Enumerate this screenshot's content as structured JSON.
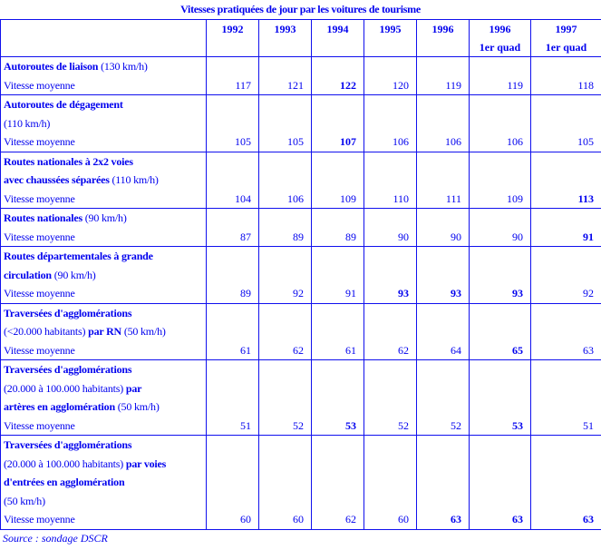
{
  "title": "Vitesses pratiquées de jour par les voitures de tourisme",
  "columns": [
    {
      "l1": "1992",
      "l2": ""
    },
    {
      "l1": "1993",
      "l2": ""
    },
    {
      "l1": "1994",
      "l2": ""
    },
    {
      "l1": "1995",
      "l2": ""
    },
    {
      "l1": "1996",
      "l2": ""
    },
    {
      "l1": "1996",
      "l2": "1er quad"
    },
    {
      "l1": "1997",
      "l2": "1er quad"
    }
  ],
  "text_color": "#0000ee",
  "rows": [
    {
      "lines": [
        [
          {
            "t": "Autoroutes de liaison ",
            "b": true
          },
          {
            "t": "(130 km/h)",
            "b": false
          }
        ]
      ],
      "measure": "Vitesse moyenne",
      "values": [
        117,
        121,
        122,
        120,
        119,
        119,
        118
      ],
      "bold": [
        false,
        false,
        true,
        false,
        false,
        false,
        false
      ]
    },
    {
      "lines": [
        [
          {
            "t": "Autoroutes de dégagement",
            "b": true
          }
        ],
        [
          {
            "t": "(110 km/h)",
            "b": false
          }
        ]
      ],
      "measure": "Vitesse moyenne",
      "values": [
        105,
        105,
        107,
        106,
        106,
        106,
        105
      ],
      "bold": [
        false,
        false,
        true,
        false,
        false,
        false,
        false
      ]
    },
    {
      "lines": [
        [
          {
            "t": "Routes nationales à 2x2 voies",
            "b": true
          }
        ],
        [
          {
            "t": "avec chaussées séparées ",
            "b": true
          },
          {
            "t": "(110 km/h)",
            "b": false
          }
        ]
      ],
      "measure": "Vitesse moyenne",
      "values": [
        104,
        106,
        109,
        110,
        111,
        109,
        113
      ],
      "bold": [
        false,
        false,
        false,
        false,
        false,
        false,
        true
      ]
    },
    {
      "lines": [
        [
          {
            "t": "Routes nationales ",
            "b": true
          },
          {
            "t": "(90 km/h)",
            "b": false
          }
        ]
      ],
      "measure": "Vitesse moyenne",
      "values": [
        87,
        89,
        89,
        90,
        90,
        90,
        91
      ],
      "bold": [
        false,
        false,
        false,
        false,
        false,
        false,
        true
      ]
    },
    {
      "lines": [
        [
          {
            "t": "Routes départementales à grande",
            "b": true
          }
        ],
        [
          {
            "t": "circulation ",
            "b": true
          },
          {
            "t": "(90 km/h)",
            "b": false
          }
        ]
      ],
      "measure": "Vitesse moyenne",
      "values": [
        89,
        92,
        91,
        93,
        93,
        93,
        92
      ],
      "bold": [
        false,
        false,
        false,
        true,
        true,
        true,
        false
      ]
    },
    {
      "lines": [
        [
          {
            "t": "Traversées d'agglomérations",
            "b": true
          }
        ],
        [
          {
            "t": "(<20.000 habitants) ",
            "b": false
          },
          {
            "t": "par RN ",
            "b": true
          },
          {
            "t": "(50 km/h)",
            "b": false
          }
        ]
      ],
      "measure": "Vitesse moyenne",
      "values": [
        61,
        62,
        61,
        62,
        64,
        65,
        63
      ],
      "bold": [
        false,
        false,
        false,
        false,
        false,
        true,
        false
      ]
    },
    {
      "lines": [
        [
          {
            "t": "Traversées d'agglomérations",
            "b": true
          }
        ],
        [
          {
            "t": "(20.000 à 100.000 habitants) ",
            "b": false
          },
          {
            "t": "par",
            "b": true
          }
        ],
        [
          {
            "t": "artères en agglomération ",
            "b": true
          },
          {
            "t": "(50 km/h)",
            "b": false
          }
        ]
      ],
      "measure": "Vitesse moyenne",
      "values": [
        51,
        52,
        53,
        52,
        52,
        53,
        51
      ],
      "bold": [
        false,
        false,
        true,
        false,
        false,
        true,
        false
      ]
    },
    {
      "lines": [
        [
          {
            "t": "Traversées d'agglomérations",
            "b": true
          }
        ],
        [
          {
            "t": "(20.000 à 100.000 habitants) ",
            "b": false
          },
          {
            "t": "par voies",
            "b": true
          }
        ],
        [
          {
            "t": "d'entrées en agglomération",
            "b": true
          }
        ],
        [
          {
            "t": "(50 km/h)",
            "b": false
          }
        ]
      ],
      "measure": "Vitesse moyenne",
      "values": [
        60,
        60,
        62,
        60,
        63,
        63,
        63
      ],
      "bold": [
        false,
        false,
        false,
        false,
        true,
        true,
        true
      ]
    }
  ],
  "source": "Source : sondage DSCR"
}
